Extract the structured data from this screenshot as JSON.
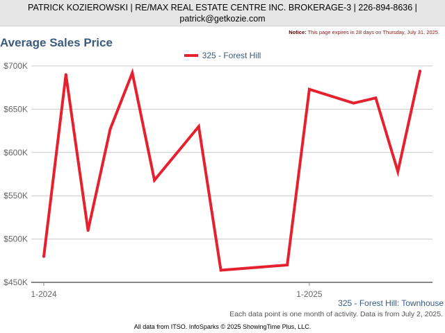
{
  "header": {
    "line1": "PATRICK KOZIEROWSKI | RE/MAX REAL ESTATE CENTRE INC. BROKERAGE-3 | 226-894-8636 |",
    "line2": "patrick@getkozie.com"
  },
  "notice": {
    "label": "Notice:",
    "text": "This page expires in 28 days on Thursday, July 31, 2025."
  },
  "chart_title": "Average Sales Price",
  "subtitle": "325 - Forest Hill: Townhouse",
  "note": "Each data point is one month of activity. Data is from July 2, 2025.",
  "footer": "All data from ITSO. InfoSparks © 2025 ShowingTime Plus, LLC.",
  "colors": {
    "series": "#e6212f",
    "title": "#3a5a80",
    "grid": "#c8c8c8",
    "axis": "#888888"
  },
  "chart_data": {
    "type": "line",
    "title": "Average Sales Price",
    "subtitle": "325 - Forest Hill: Townhouse",
    "legend_position": "top-center",
    "grid": true,
    "ylim": [
      450000,
      700000
    ],
    "yticks": [
      {
        "value": 450000,
        "label": "$450K"
      },
      {
        "value": 500000,
        "label": "$500K"
      },
      {
        "value": 550000,
        "label": "$550K"
      },
      {
        "value": 600000,
        "label": "$600K"
      },
      {
        "value": 650000,
        "label": "$650K"
      },
      {
        "value": 700000,
        "label": "$700K"
      }
    ],
    "xticks": [
      {
        "value": "2024-01",
        "label": "1-2024"
      },
      {
        "value": "2025-01",
        "label": "1-2025"
      }
    ],
    "x": [
      "2024-01",
      "2024-02",
      "2024-03",
      "2024-04",
      "2024-05",
      "2024-06",
      "2024-08",
      "2024-09",
      "2024-12",
      "2025-01",
      "2025-03",
      "2025-04",
      "2025-05",
      "2025-06"
    ],
    "series": [
      {
        "name": "325 - Forest Hill",
        "values": [
          480000,
          690000,
          510000,
          627000,
          692000,
          568000,
          630000,
          464000,
          470000,
          673000,
          657000,
          663000,
          578000,
          694000
        ]
      }
    ]
  }
}
